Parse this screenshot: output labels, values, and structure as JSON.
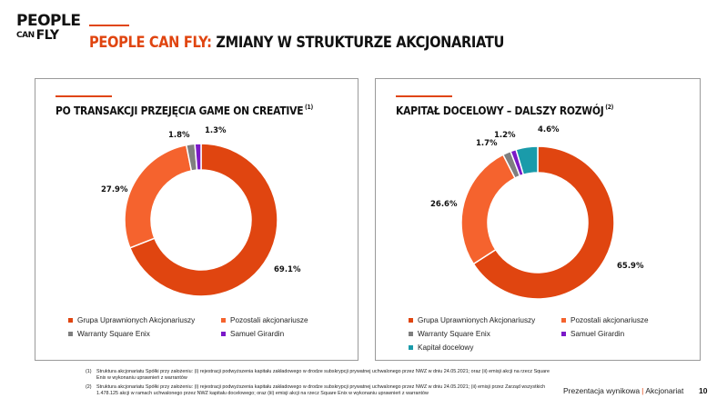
{
  "logo": {
    "line1": "PEOPLE",
    "line2_small": "CAN",
    "line2": "FLY"
  },
  "header": {
    "title_accent": "PEOPLE CAN FLY:",
    "title_rest": " ZMIANY W STRUKTURZE AKCJONARIATU"
  },
  "colors": {
    "orange_dark": "#E04510",
    "orange_light": "#F5632E",
    "gray": "#7F7F7F",
    "purple": "#7B19C8",
    "teal": "#1A9BAA"
  },
  "panels": [
    {
      "title": "PO TRANSAKCJI PRZEJĘCIA GAME ON CREATIVE",
      "note": "(1)",
      "labels": [
        "69.1%",
        "27.9%",
        "1.8%",
        "1.3%"
      ],
      "legend": [
        {
          "label": "Grupa Uprawnionych Akcjonariuszy",
          "color": "#E04510"
        },
        {
          "label": "Pozostali akcjonariusze",
          "color": "#F5632E"
        },
        {
          "label": "Warranty Square Enix",
          "color": "#7F7F7F"
        },
        {
          "label": "Samuel Girardin",
          "color": "#7B19C8"
        }
      ]
    },
    {
      "title": "KAPITAŁ DOCELOWY – DALSZY ROZWÓJ",
      "note": "(2)",
      "labels": [
        "65.9%",
        "26.6%",
        "1.7%",
        "1.2%",
        "4.6%"
      ],
      "legend": [
        {
          "label": "Grupa Uprawnionych Akcjonariuszy",
          "color": "#E04510"
        },
        {
          "label": "Pozostali akcjonariusze",
          "color": "#F5632E"
        },
        {
          "label": "Warranty Square Enix",
          "color": "#7F7F7F"
        },
        {
          "label": "Samuel Girardin",
          "color": "#7B19C8"
        },
        {
          "label": "Kapitał docelowy",
          "color": "#1A9BAA"
        }
      ]
    }
  ],
  "chart_data": [
    {
      "type": "pie",
      "title": "PO TRANSAKCJI PRZEJĘCIA GAME ON CREATIVE",
      "categories": [
        "Grupa Uprawnionych Akcjonariuszy",
        "Pozostali akcjonariusze",
        "Warranty Square Enix",
        "Samuel Girardin"
      ],
      "values": [
        69.1,
        27.9,
        1.8,
        1.3
      ],
      "colors": [
        "#E04510",
        "#F5632E",
        "#7F7F7F",
        "#7B19C8"
      ],
      "donut": true,
      "legend": "bottom"
    },
    {
      "type": "pie",
      "title": "KAPITAŁ DOCELOWY – DALSZY ROZWÓJ",
      "categories": [
        "Grupa Uprawnionych Akcjonariuszy",
        "Pozostali akcjonariusze",
        "Warranty Square Enix",
        "Samuel Girardin",
        "Kapitał docelowy"
      ],
      "values": [
        65.9,
        26.6,
        1.7,
        1.2,
        4.6
      ],
      "colors": [
        "#E04510",
        "#F5632E",
        "#7F7F7F",
        "#7B19C8",
        "#1A9BAA"
      ],
      "donut": true,
      "legend": "bottom"
    }
  ],
  "footnotes": [
    {
      "num": "(1)",
      "text": "Struktura akcjonariatu Spółki przy założeniu: (i) rejestracji podwyższenia kapitału zakładowego w drodze subskrypcji prywatnej uchwalonego przez NWZ w dniu 24.05.2021; oraz (ii) emisji akcji na rzecz Square Enix w wykonaniu uprawnień z warrantów"
    },
    {
      "num": "(2)",
      "text": "Struktura akcjonariatu Spółki przy założeniu: (i) rejestracji podwyższenia kapitału zakładowego w drodze subskrypcji prywatnej uchwalonego przez NWZ w dniu 24.05.2021; (ii) emisji przez Zarząd wszystkich 1.478.125 akcji w ramach uchwalonego przez NWZ kapitału docelowego; oraz (iii) emisji akcji na rzecz Square Enix w wykonaniu uprawnień z warrantów"
    }
  ],
  "footer": {
    "left": "Prezentacja wynikowa",
    "sep": "|",
    "right": "Akcjonariat",
    "page": "10"
  }
}
